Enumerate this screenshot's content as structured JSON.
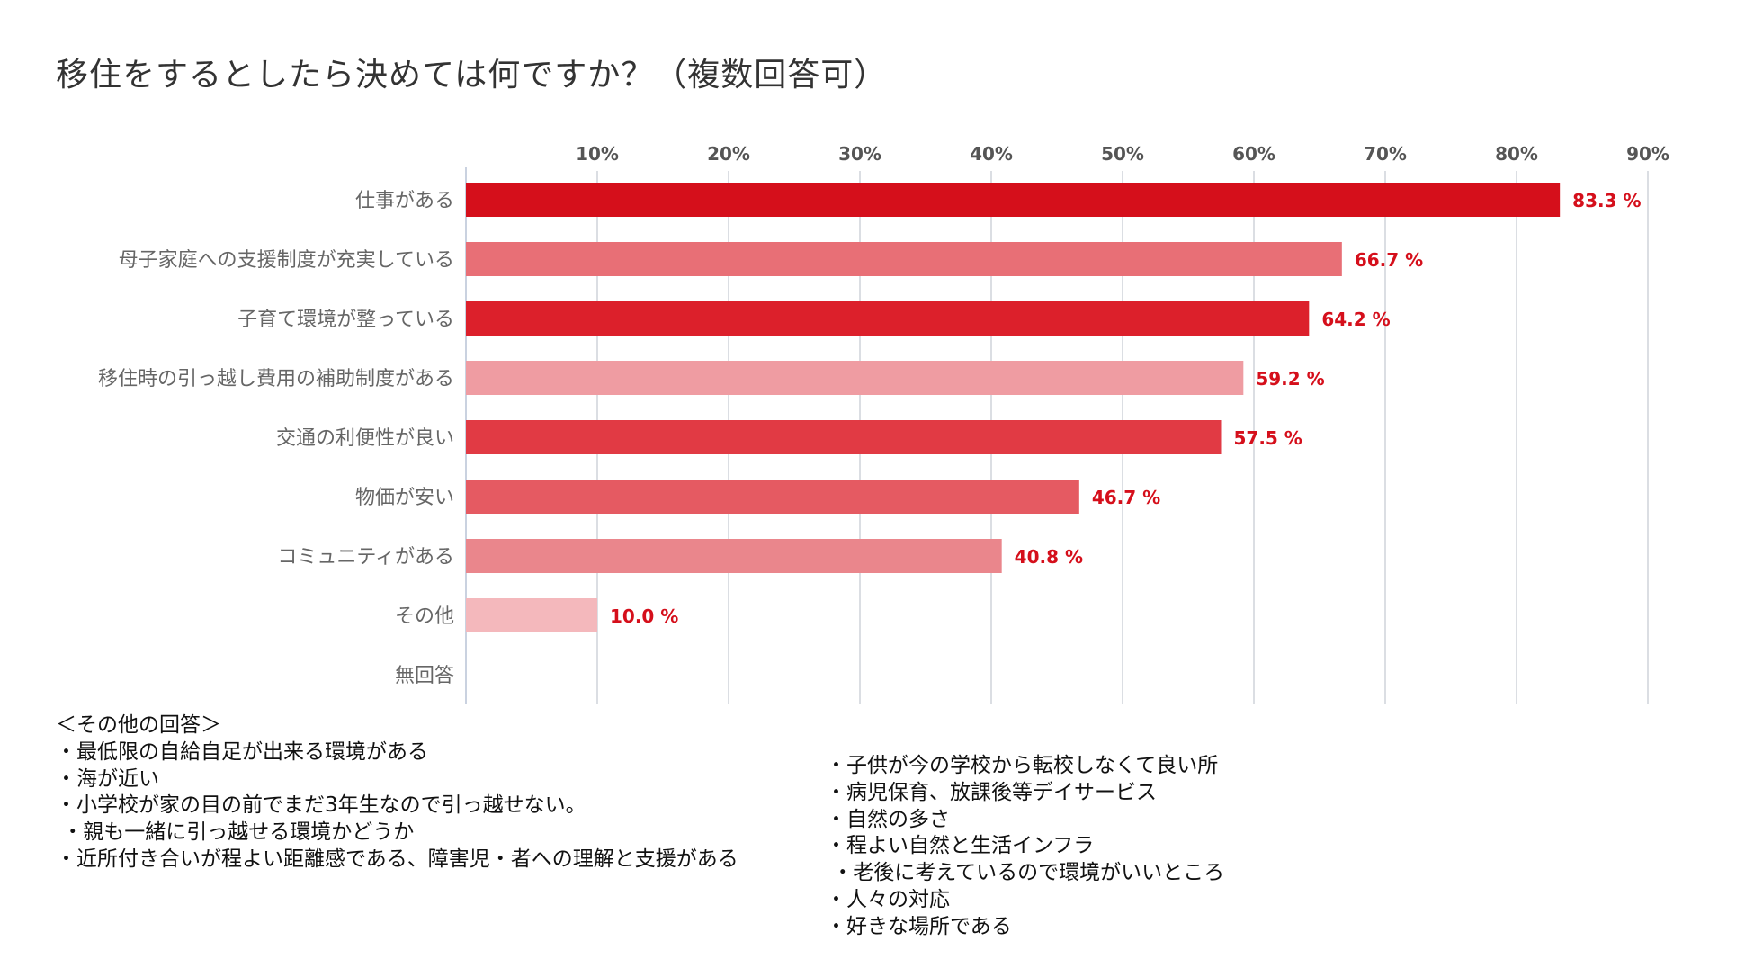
{
  "title": "移住をするとしたら決めては何ですか？（複数回答可）",
  "chart_data": {
    "type": "bar",
    "orientation": "horizontal",
    "categories": [
      "仕事がある",
      "母子家庭への支援制度が充実している",
      "子育て環境が整っている",
      "移住時の引っ越し費用の補助制度がある",
      "交通の利便性が良い",
      "物価が安い",
      "コミュニティがある",
      "その他",
      "無回答"
    ],
    "values": [
      83.3,
      66.7,
      64.2,
      59.2,
      57.5,
      46.7,
      40.8,
      10.0,
      0
    ],
    "value_labels": [
      "83.3 %",
      "66.7 %",
      "64.2 %",
      "59.2 %",
      "57.5 %",
      "46.7 %",
      "40.8 %",
      "10.0 %",
      ""
    ],
    "bar_colors": [
      "#d50f1b",
      "#e86f76",
      "#dc202b",
      "#ef9ca2",
      "#e13a44",
      "#e55a62",
      "#ea868c",
      "#f4b8bc",
      "#ffffff"
    ],
    "label_color": "#d50f1b",
    "xlim": [
      0,
      90
    ],
    "x_ticks": [
      "10%",
      "20%",
      "30%",
      "40%",
      "50%",
      "60%",
      "70%",
      "80%",
      "90%"
    ],
    "x_tick_values": [
      10,
      20,
      30,
      40,
      50,
      60,
      70,
      80,
      90
    ],
    "axis_position": "top",
    "grid": true
  },
  "notes_left": [
    "＜その他の回答＞",
    "・最低限の自給自足が出来る環境がある",
    "・海が近い",
    "・小学校が家の目の前でまだ3年生なので引っ越せない。",
    " ・親も一緒に引っ越せる環境かどうか",
    "・近所付き合いが程よい距離感である、障害児・者への理解と支援がある"
  ],
  "notes_right": [
    "・子供が今の学校から転校しなくて良い所",
    "・病児保育、放課後等デイサービス",
    "・自然の多さ",
    "・程よい自然と生活インフラ",
    " ・老後に考えているので環境がいいところ",
    "・人々の対応",
    "・好きな場所である"
  ]
}
